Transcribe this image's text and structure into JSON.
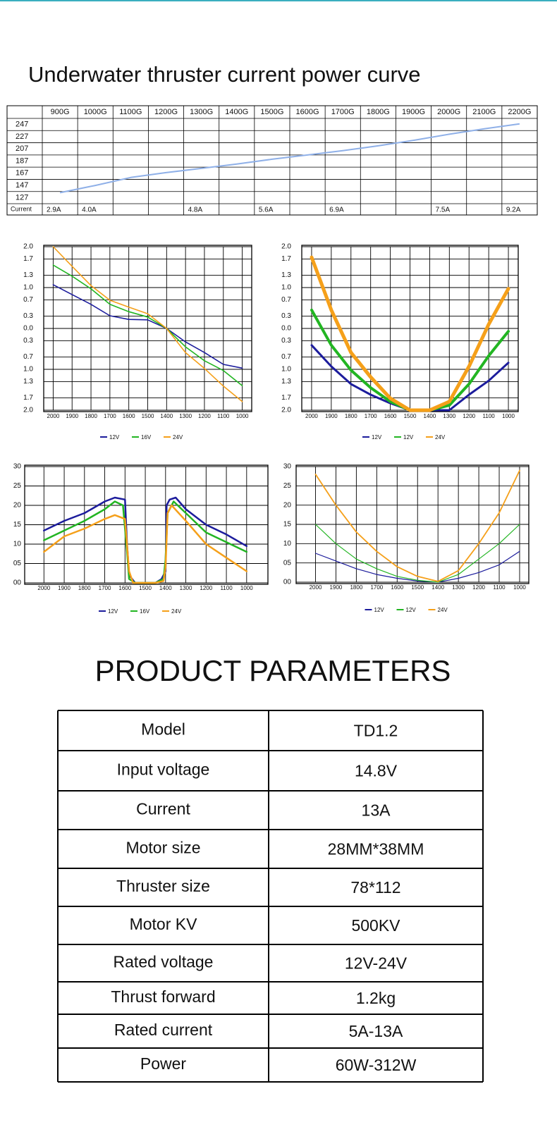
{
  "title": "Underwater thruster current power curve",
  "chart_data": [
    {
      "type": "line",
      "categories": [
        "900G",
        "1000G",
        "1100G",
        "1200G",
        "1300G",
        "1400G",
        "1500G",
        "1600G",
        "1700G",
        "1800G",
        "1900G",
        "2000G",
        "2100G",
        "2200G"
      ],
      "ylim": [
        117,
        257
      ],
      "yticks": [
        247,
        227,
        207,
        187,
        167,
        147,
        127
      ],
      "series": [
        {
          "color": "#8fb0e8",
          "values": [
            135,
            147,
            160,
            168,
            175,
            182,
            190,
            197,
            204,
            212,
            221,
            231,
            240,
            248
          ]
        }
      ],
      "current_label": "Current",
      "current": [
        "2.9A",
        "4.0A",
        null,
        null,
        "4.8A",
        null,
        "5.6A",
        null,
        "6.9A",
        null,
        null,
        "7.5A",
        null,
        "9.2A"
      ]
    },
    {
      "type": "line",
      "xlim": [
        2050,
        950
      ],
      "xticks": [
        2000,
        1900,
        1800,
        1700,
        1600,
        1500,
        1400,
        1300,
        1200,
        1100,
        1000
      ],
      "ylim": [
        -2,
        2
      ],
      "yticks": [
        {
          "value": 2,
          "label": "2.0"
        },
        {
          "value": 1.7,
          "label": "1.7"
        },
        {
          "value": 1.3,
          "label": "1.3"
        },
        {
          "value": 1,
          "label": "1.0"
        },
        {
          "value": 0.7,
          "label": "0.7"
        },
        {
          "value": 0.3,
          "label": "0.3"
        },
        {
          "value": 0,
          "label": "0.0"
        },
        {
          "value": -0.3,
          "label": "0.3"
        },
        {
          "value": -0.7,
          "label": "0.7"
        },
        {
          "value": -1,
          "label": "1.0"
        },
        {
          "value": -1.3,
          "label": "1.3"
        },
        {
          "value": -1.7,
          "label": "1.7"
        },
        {
          "value": -2,
          "label": "2.0"
        }
      ],
      "grid": true,
      "legend": "bottom",
      "series": [
        {
          "name": "12V",
          "color": "#1c1c9c",
          "line_width": 1.6,
          "x": [
            2000,
            1900,
            1800,
            1700,
            1600,
            1500,
            1400,
            1300,
            1200,
            1100,
            1000
          ],
          "values": [
            1.07,
            0.83,
            0.59,
            0.31,
            0.22,
            0.21,
            0,
            -0.33,
            -0.59,
            -0.88,
            -0.97
          ]
        },
        {
          "name": "16V",
          "color": "#22b522",
          "line_width": 1.6,
          "x": [
            2000,
            1900,
            1800,
            1700,
            1600,
            1500,
            1400,
            1300,
            1200,
            1100,
            1000
          ],
          "values": [
            1.55,
            1.28,
            0.97,
            0.59,
            0.41,
            0.28,
            0,
            -0.45,
            -0.79,
            -1.03,
            -1.4
          ]
        },
        {
          "name": "24V",
          "color": "#f5a01a",
          "line_width": 1.6,
          "x": [
            2000,
            1900,
            1800,
            1700,
            1600,
            1500,
            1400,
            1300,
            1200,
            1100,
            1000
          ],
          "values": [
            2,
            1.52,
            1.05,
            0.69,
            0.52,
            0.36,
            0,
            -0.59,
            -0.98,
            -1.41,
            -1.79
          ]
        }
      ]
    },
    {
      "type": "line",
      "xlim": [
        2050,
        950
      ],
      "xticks": [
        2000,
        1900,
        1800,
        1700,
        1600,
        1500,
        1400,
        1300,
        1200,
        1100,
        1000
      ],
      "ylim": [
        -2,
        2
      ],
      "yticks": [
        {
          "value": 2,
          "label": "2.0"
        },
        {
          "value": 1.7,
          "label": "1.7"
        },
        {
          "value": 1.3,
          "label": "1.3"
        },
        {
          "value": 1,
          "label": "1.0"
        },
        {
          "value": 0.7,
          "label": "0.7"
        },
        {
          "value": 0.3,
          "label": "0.3"
        },
        {
          "value": 0,
          "label": "0.0"
        },
        {
          "value": -0.3,
          "label": "0.3"
        },
        {
          "value": -0.7,
          "label": "0.7"
        },
        {
          "value": -1,
          "label": "1.0"
        },
        {
          "value": -1.3,
          "label": "1.3"
        },
        {
          "value": -1.7,
          "label": "1.7"
        },
        {
          "value": -2,
          "label": "2.0"
        }
      ],
      "grid": true,
      "legend": "bottom",
      "series": [
        {
          "name": "12V",
          "color": "#1c1c9c",
          "line_width": 3,
          "x": [
            2000,
            1900,
            1800,
            1700,
            1600,
            1500,
            1400,
            1300,
            1200,
            1100,
            1000
          ],
          "values": [
            -0.41,
            -0.93,
            -1.36,
            -1.62,
            -1.83,
            -2,
            -2,
            -2,
            -1.62,
            -1.28,
            -0.84
          ]
        },
        {
          "name": "12V",
          "color": "#22b522",
          "line_width": 4,
          "x": [
            2000,
            1900,
            1800,
            1700,
            1600,
            1500,
            1400,
            1300,
            1200,
            1100,
            1000
          ],
          "values": [
            0.45,
            -0.41,
            -1.02,
            -1.45,
            -1.79,
            -2,
            -2,
            -1.88,
            -1.36,
            -0.67,
            -0.07
          ]
        },
        {
          "name": "24V",
          "color": "#f5a01a",
          "line_width": 5,
          "x": [
            2000,
            1900,
            1800,
            1700,
            1600,
            1500,
            1400,
            1300,
            1200,
            1100,
            1000
          ],
          "values": [
            1.74,
            0.45,
            -0.59,
            -1.19,
            -1.71,
            -2,
            -2,
            -1.79,
            -0.93,
            0.1,
            0.97
          ]
        }
      ]
    },
    {
      "type": "line",
      "xlim": [
        2095,
        895
      ],
      "xticks": [
        2000,
        1900,
        1800,
        1700,
        1600,
        1500,
        1400,
        1300,
        1200,
        1100,
        1000
      ],
      "ylim": [
        0,
        30
      ],
      "yticks": [
        30,
        25,
        20,
        15,
        10,
        {
          "value": 5,
          "label": "05"
        },
        {
          "value": 0,
          "label": "00"
        }
      ],
      "grid": true,
      "legend": "bottom",
      "series": [
        {
          "name": "12V",
          "color": "#1c1c9c",
          "line_width": 2.5,
          "x": [
            2000,
            1900,
            1800,
            1700,
            1650,
            1600,
            1590,
            1580,
            1550,
            1500,
            1450,
            1420,
            1400,
            1395,
            1380,
            1350,
            1300,
            1200,
            1100,
            1000
          ],
          "values": [
            13.5,
            16,
            18,
            21,
            22,
            21.5,
            10,
            2,
            0,
            0,
            0,
            1,
            3,
            20,
            21.5,
            22,
            19,
            15,
            12.5,
            9.5
          ]
        },
        {
          "name": "16V",
          "color": "#22b522",
          "line_width": 2.5,
          "x": [
            2000,
            1900,
            1800,
            1700,
            1650,
            1610,
            1590,
            1580,
            1550,
            1450,
            1410,
            1400,
            1390,
            1360,
            1300,
            1200,
            1100,
            1000
          ],
          "values": [
            11,
            13.5,
            16,
            19,
            21,
            20,
            8,
            1,
            0,
            0,
            1,
            6,
            18,
            21,
            18,
            13,
            10.5,
            8
          ]
        },
        {
          "name": "24V",
          "color": "#f5a01a",
          "line_width": 2.5,
          "x": [
            2000,
            1900,
            1800,
            1700,
            1650,
            1600,
            1580,
            1560,
            1450,
            1410,
            1400,
            1390,
            1370,
            1300,
            1200,
            1100,
            1000
          ],
          "values": [
            8,
            12,
            14,
            16.5,
            17.5,
            16.5,
            3,
            0,
            0,
            0.5,
            4,
            18,
            20,
            16,
            10,
            6.5,
            3
          ]
        }
      ]
    },
    {
      "type": "line",
      "xlim": [
        2095,
        955
      ],
      "xticks": [
        2000,
        1900,
        1800,
        1700,
        1600,
        1500,
        1400,
        1300,
        1200,
        1100,
        1000
      ],
      "ylim": [
        0,
        30
      ],
      "yticks": [
        30,
        25,
        20,
        15,
        10,
        {
          "value": 5,
          "label": "05"
        },
        {
          "value": 0,
          "label": "00"
        }
      ],
      "grid": true,
      "legend": "bottom",
      "series": [
        {
          "name": "12V",
          "color": "#1c1c9c",
          "line_width": 1.2,
          "x": [
            2000,
            1900,
            1800,
            1700,
            1600,
            1500,
            1400,
            1300,
            1200,
            1100,
            1000
          ],
          "values": [
            7.5,
            5.5,
            3.5,
            2,
            1,
            0.3,
            0,
            1,
            2.5,
            4.5,
            8
          ]
        },
        {
          "name": "12V",
          "color": "#22b522",
          "line_width": 1.2,
          "x": [
            2000,
            1900,
            1800,
            1700,
            1600,
            1500,
            1400,
            1300,
            1200,
            1100,
            1000
          ],
          "values": [
            15,
            10,
            6,
            3.5,
            1.5,
            0.5,
            0,
            2,
            6,
            10,
            15
          ]
        },
        {
          "name": "24V",
          "color": "#f5a01a",
          "line_width": 1.8,
          "x": [
            2000,
            1900,
            1800,
            1700,
            1600,
            1500,
            1400,
            1300,
            1200,
            1100,
            1000
          ],
          "values": [
            28,
            20,
            13,
            8,
            4,
            1.5,
            0.2,
            3,
            10,
            18,
            29
          ]
        }
      ]
    }
  ],
  "parameters": {
    "title": "PRODUCT PARAMETERS",
    "rows": [
      [
        "Model",
        "TD1.2"
      ],
      [
        "Input voltage",
        "14.8V"
      ],
      [
        "Current",
        "13A"
      ],
      [
        "Motor size",
        "28MM*38MM"
      ],
      [
        "Thruster size",
        "78*112"
      ],
      [
        "Motor KV",
        "500KV"
      ],
      [
        "Rated voltage",
        "12V-24V"
      ],
      [
        "Thrust forward",
        "1.2kg"
      ],
      [
        "Rated current",
        "5A-13A"
      ],
      [
        "Power",
        "60W-312W"
      ]
    ]
  }
}
